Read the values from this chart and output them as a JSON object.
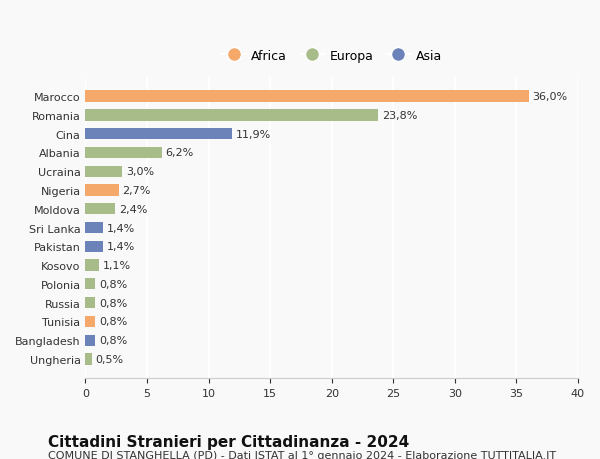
{
  "title": "Cittadini Stranieri per Cittadinanza - 2024",
  "subtitle": "COMUNE DI STANGHELLA (PD) - Dati ISTAT al 1° gennaio 2024 - Elaborazione TUTTITALIA.IT",
  "countries": [
    "Marocco",
    "Romania",
    "Cina",
    "Albania",
    "Ucraina",
    "Nigeria",
    "Moldova",
    "Sri Lanka",
    "Pakistan",
    "Kosovo",
    "Polonia",
    "Russia",
    "Tunisia",
    "Bangladesh",
    "Ungheria"
  ],
  "values": [
    36.0,
    23.8,
    11.9,
    6.2,
    3.0,
    2.7,
    2.4,
    1.4,
    1.4,
    1.1,
    0.8,
    0.8,
    0.8,
    0.8,
    0.5
  ],
  "labels": [
    "36,0%",
    "23,8%",
    "11,9%",
    "6,2%",
    "3,0%",
    "2,7%",
    "2,4%",
    "1,4%",
    "1,4%",
    "1,1%",
    "0,8%",
    "0,8%",
    "0,8%",
    "0,8%",
    "0,5%"
  ],
  "continents": [
    "Africa",
    "Europa",
    "Asia",
    "Europa",
    "Europa",
    "Africa",
    "Europa",
    "Asia",
    "Asia",
    "Europa",
    "Europa",
    "Europa",
    "Africa",
    "Asia",
    "Europa"
  ],
  "colors": {
    "Africa": "#F4A96A",
    "Europa": "#A8BC8A",
    "Asia": "#6B83B8"
  },
  "xlim": [
    0,
    40
  ],
  "xticks": [
    0,
    5,
    10,
    15,
    20,
    25,
    30,
    35,
    40
  ],
  "background_color": "#f9f9f9",
  "grid_color": "#ffffff",
  "title_fontsize": 11,
  "subtitle_fontsize": 8,
  "label_fontsize": 8,
  "tick_fontsize": 8,
  "legend_fontsize": 9,
  "legend_marker_size": 10
}
